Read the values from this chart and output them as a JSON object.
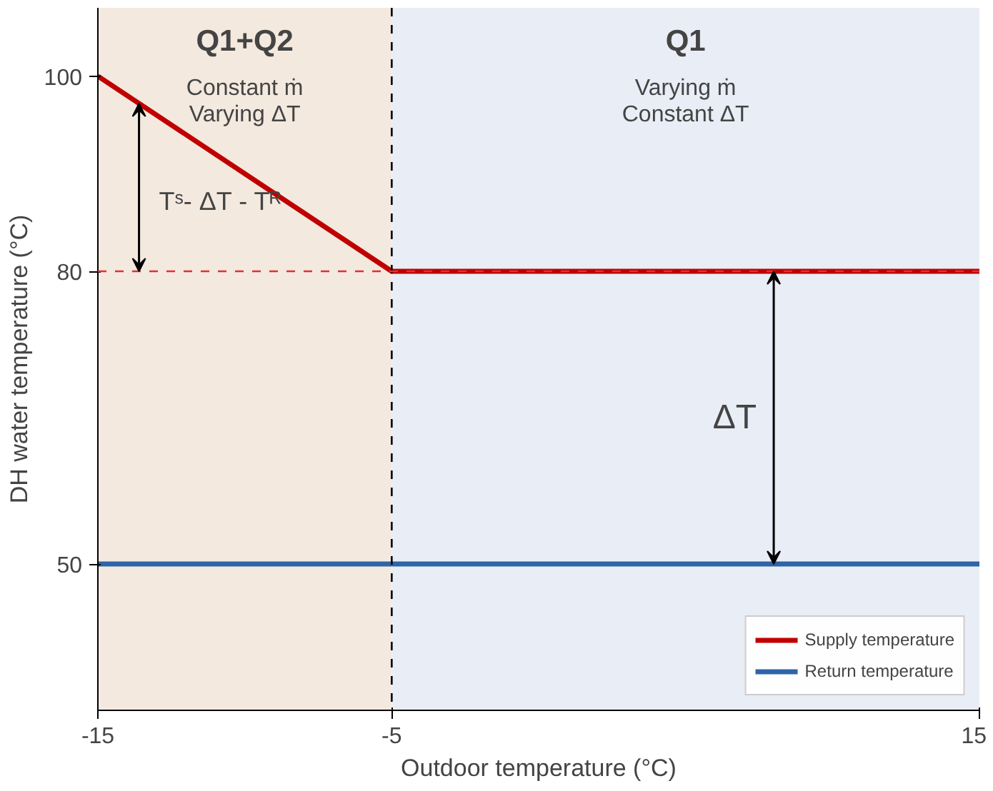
{
  "chart_data": {
    "type": "line",
    "xlabel": "Outdoor temperature (°C)",
    "ylabel": "DH water temperature (°C)",
    "xlim": [
      -15,
      15
    ],
    "ylim": [
      35,
      107
    ],
    "xticks": [
      -15,
      -5,
      15
    ],
    "yticks": [
      100,
      80,
      50
    ],
    "grid": false,
    "legend": "bottom right",
    "series": [
      {
        "name": "Supply temperature",
        "color": "#c00000",
        "x": [
          -15,
          -5,
          15
        ],
        "values": [
          100,
          80,
          80
        ]
      },
      {
        "name": "Return temperature",
        "color": "#2e64a8",
        "x": [
          -15,
          15
        ],
        "values": [
          50,
          50
        ]
      }
    ],
    "bands": [
      {
        "axis": "x",
        "from": -15,
        "to": -5,
        "label": "Q1+Q2",
        "color": "#f3e9df"
      },
      {
        "axis": "x",
        "from": -5,
        "to": 15,
        "label": "Q1",
        "color": "#e9edf5"
      }
    ],
    "ref_lines": [
      {
        "axis": "x",
        "value": -5,
        "color": "#000000",
        "line_style": "dashed"
      },
      {
        "axis": "y",
        "value": 80,
        "color": "#e03030",
        "line_style": "dashed"
      }
    ],
    "annotations": [
      "Constant ṁ\nVarying ΔT",
      "Varying ṁ\nConstant ΔT",
      "Tˢ- ΔT - Tᴿ",
      "ΔT"
    ]
  }
}
